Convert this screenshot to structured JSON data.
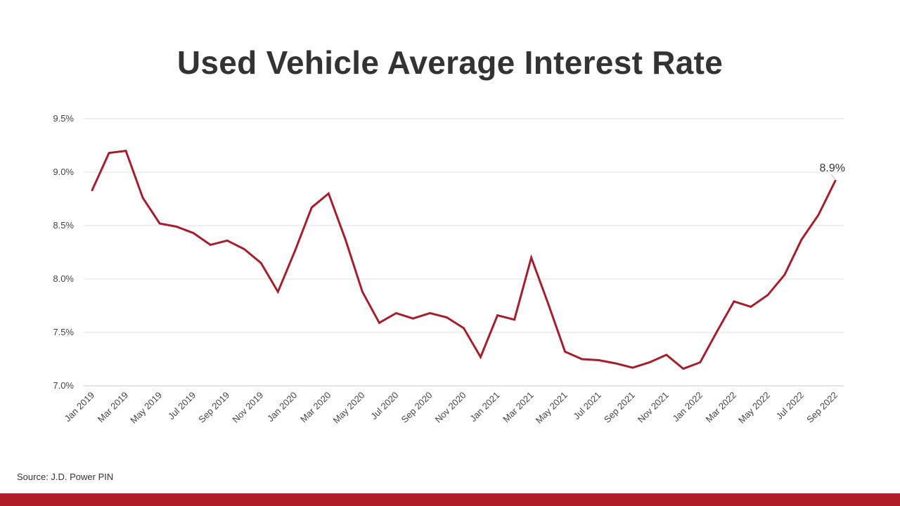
{
  "slide": {
    "title": "Used Vehicle Average Interest Rate",
    "source": "Source: J.D. Power PIN",
    "accent_color": "#B01E2A"
  },
  "chart_data": {
    "type": "line",
    "title": "Used Vehicle Average Interest Rate",
    "xlabel": "",
    "ylabel": "",
    "ylim": [
      7.0,
      9.5
    ],
    "yticks": [
      7.0,
      7.5,
      8.0,
      8.5,
      9.0,
      9.5
    ],
    "ytick_labels": [
      "7.0%",
      "7.5%",
      "8.0%",
      "8.5%",
      "9.0%",
      "9.5%"
    ],
    "grid": true,
    "legend": "none",
    "series_color": "#A51E2C",
    "x": [
      "Jan 2019",
      "Feb 2019",
      "Mar 2019",
      "Apr 2019",
      "May 2019",
      "Jun 2019",
      "Jul 2019",
      "Aug 2019",
      "Sep 2019",
      "Oct 2019",
      "Nov 2019",
      "Dec 2019",
      "Jan 2020",
      "Feb 2020",
      "Mar 2020",
      "Apr 2020",
      "May 2020",
      "Jun 2020",
      "Jul 2020",
      "Aug 2020",
      "Sep 2020",
      "Oct 2020",
      "Nov 2020",
      "Dec 2020",
      "Jan 2021",
      "Feb 2021",
      "Mar 2021",
      "Apr 2021",
      "May 2021",
      "Jun 2021",
      "Jul 2021",
      "Aug 2021",
      "Sep 2021",
      "Oct 2021",
      "Nov 2021",
      "Dec 2021",
      "Jan 2022",
      "Feb 2022",
      "Mar 2022",
      "Apr 2022",
      "May 2022",
      "Jun 2022",
      "Jul 2022",
      "Aug 2022",
      "Sep 2022"
    ],
    "x_tick_labels": [
      "Jan 2019",
      "Mar 2019",
      "May 2019",
      "Jul 2019",
      "Sep 2019",
      "Nov 2019",
      "Jan 2020",
      "Mar 2020",
      "May 2020",
      "Jul 2020",
      "Sep 2020",
      "Nov 2020",
      "Jan 2021",
      "Mar 2021",
      "May 2021",
      "Jul 2021",
      "Sep 2021",
      "Nov 2021",
      "Jan 2022",
      "Mar 2022",
      "May 2022",
      "Jul 2022",
      "Sep 2022"
    ],
    "series": [
      {
        "values": [
          8.83,
          9.18,
          9.2,
          8.76,
          8.52,
          8.49,
          8.43,
          8.32,
          8.36,
          8.28,
          8.15,
          7.88,
          8.26,
          8.67,
          8.8,
          8.37,
          7.88,
          7.59,
          7.68,
          7.63,
          7.68,
          7.64,
          7.54,
          7.27,
          7.66,
          7.62,
          8.2,
          7.77,
          7.32,
          7.25,
          7.24,
          7.21,
          7.17,
          7.22,
          7.29,
          7.16,
          7.22,
          7.51,
          7.79,
          7.74,
          7.85,
          8.04,
          8.37,
          8.6,
          8.92
        ]
      }
    ],
    "annotations": [
      {
        "index": 44,
        "text": "8.9%"
      }
    ]
  }
}
